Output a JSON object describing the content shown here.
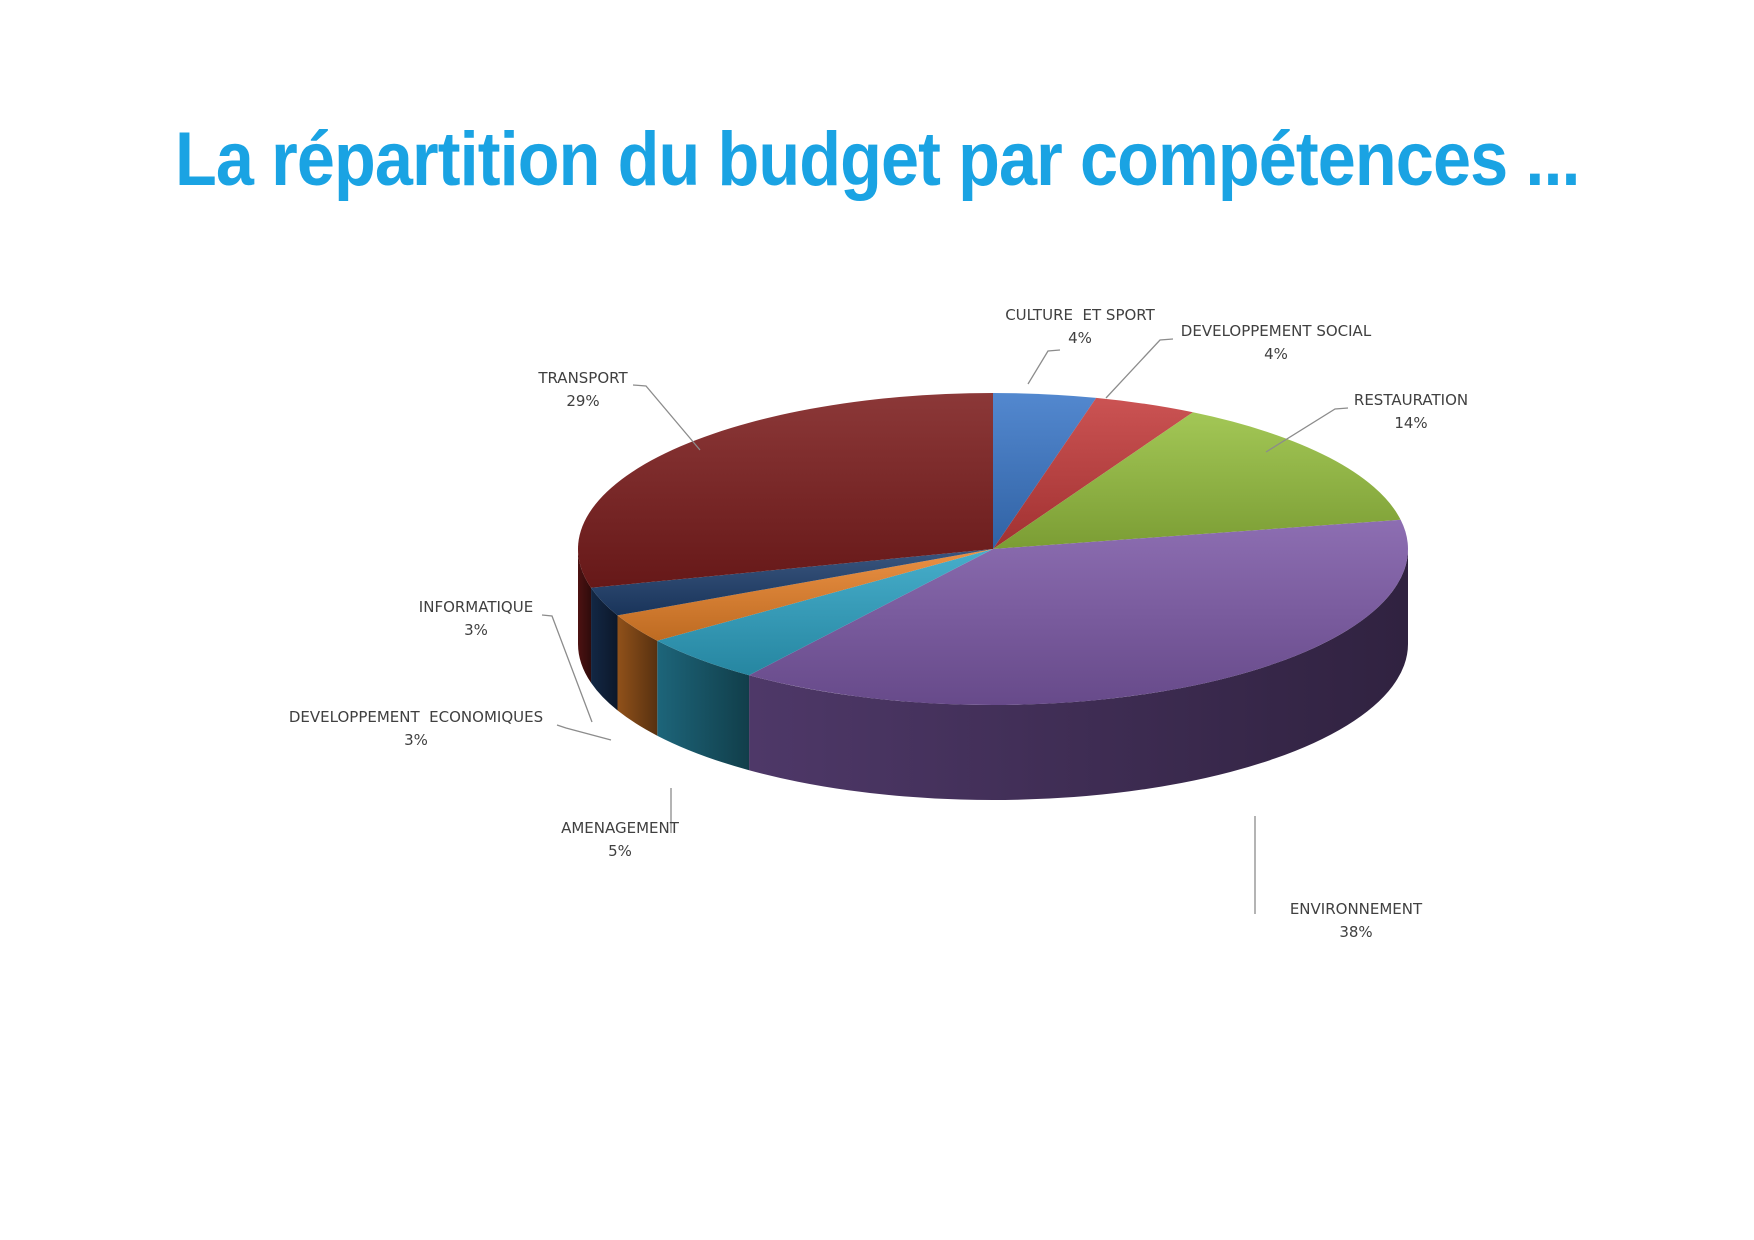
{
  "title": "La répartition du budget par compétences ...",
  "chart_data": {
    "type": "pie",
    "style": "3d",
    "title": "La répartition du budget par compétences ...",
    "categories": [
      "CULTURE  ET SPORT",
      "DEVELOPPEMENT SOCIAL",
      "RESTAURATION",
      "ENVIRONNEMENT",
      "AMENAGEMENT",
      "DEVELOPPEMENT  ECONOMIQUES",
      "INFORMATIQUE",
      "TRANSPORT"
    ],
    "values": [
      4,
      4,
      14,
      38,
      5,
      3,
      3,
      29
    ],
    "value_labels": [
      "4%",
      "4%",
      "14%",
      "38%",
      "5%",
      "3%",
      "3%",
      "29%"
    ],
    "colors": [
      "#3b78c8",
      "#c43c3c",
      "#96bf3f",
      "#7d5aa8",
      "#2ea3c4",
      "#e8822a",
      "#1f3f6e",
      "#7c1d1d"
    ],
    "legend": "none",
    "start_angle": "12 o'clock",
    "direction": "clockwise"
  }
}
